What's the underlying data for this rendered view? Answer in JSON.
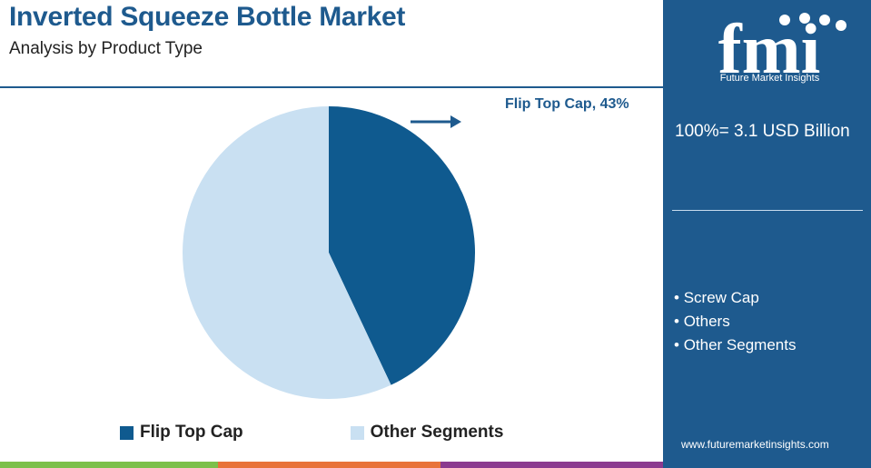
{
  "title": "Inverted Squeeze Bottle Market",
  "subtitle": "Analysis by Product Type",
  "callout": "Flip Top Cap, 43%",
  "colors": {
    "brand": "#1e5a8e",
    "flip_top_cap": "#0f5a8f",
    "other_segments": "#c9e0f2",
    "bar_green": "#7cc04b",
    "bar_orange": "#e8733a",
    "bar_purple": "#8b3a8f"
  },
  "chart_data": {
    "type": "pie",
    "title": "Inverted Squeeze Bottle Market",
    "subtitle": "Analysis by Product Type",
    "series": [
      {
        "name": "Flip Top Cap",
        "value": 43,
        "color": "#0f5a8f"
      },
      {
        "name": "Other Segments",
        "value": 57,
        "color": "#c9e0f2"
      }
    ],
    "legend_position": "bottom"
  },
  "legend": [
    {
      "label": "Flip Top Cap",
      "color": "#0f5a8f"
    },
    {
      "label": "Other Segments",
      "color": "#c9e0f2"
    }
  ],
  "panel": {
    "logo_text": "fmi",
    "logo_caption": "Future Market Insights",
    "total": "100%= 3.1 USD Billion",
    "bullets": [
      "Screw Cap",
      "Others",
      "Other Segments"
    ],
    "url": "www.futuremarketinsights.com"
  }
}
